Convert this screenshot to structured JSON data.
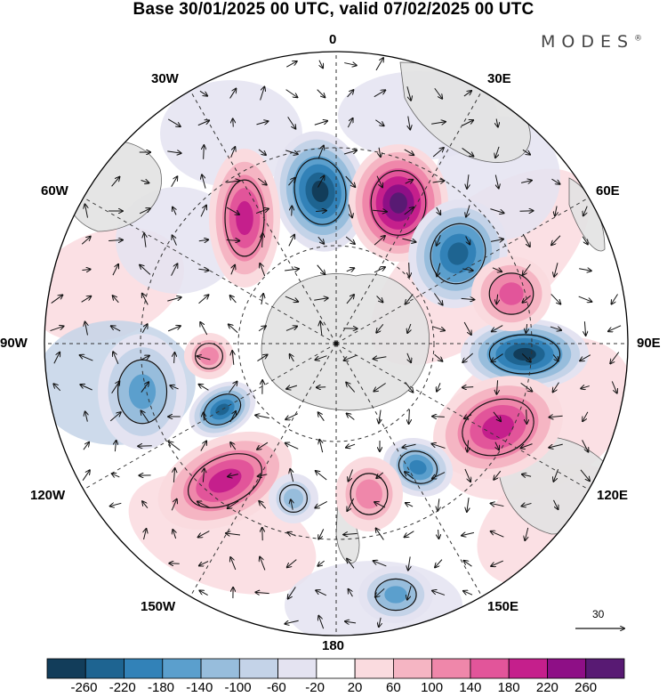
{
  "title": "Base 30/01/2025 00 UTC, valid 07/02/2025 00 UTC",
  "brand": "MODES",
  "brand_mark": "®",
  "longitude_labels": {
    "top": "0",
    "bottom": "180",
    "left": "90W",
    "right": "90E",
    "nw1": "30W",
    "nw2": "60W",
    "ne1": "30E",
    "ne2": "60E",
    "sw1": "120W",
    "sw2": "150W",
    "se1": "120E",
    "se2": "150E"
  },
  "reference_vector": "30",
  "colorbar": {
    "labels": [
      "-260",
      "-220",
      "-180",
      "-140",
      "-100",
      "-60",
      "-20",
      "20",
      "60",
      "100",
      "140",
      "180",
      "220",
      "260"
    ],
    "colors": [
      "#123d5a",
      "#1e6491",
      "#3282b8",
      "#5b9fcd",
      "#97bddc",
      "#c4d3e8",
      "#e4e3f1",
      "#ffffff",
      "#fadbdf",
      "#f5b5c3",
      "#ef87aa",
      "#e2559a",
      "#c51f8c",
      "#8e0f86",
      "#581a73"
    ]
  },
  "colors": {
    "land": "#e3e3e3",
    "grid": "#333333",
    "vector": "#111111"
  },
  "icons": [
    "wind-vector-arrow",
    "reference-arrow"
  ]
}
